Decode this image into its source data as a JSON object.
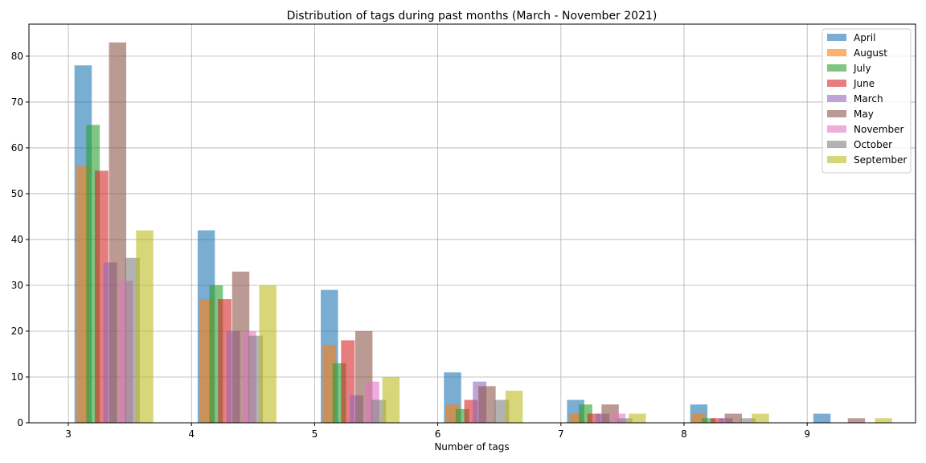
{
  "chart_data": {
    "type": "bar",
    "title": "Distribution of tags during past months (March - November 2021)",
    "xlabel": "Number of tags",
    "ylabel": "",
    "xlim": [
      2.68,
      9.88
    ],
    "ylim": [
      0,
      87
    ],
    "xticks": [
      3,
      4,
      5,
      6,
      7,
      8,
      9
    ],
    "yticks": [
      0,
      10,
      20,
      30,
      40,
      50,
      60,
      70,
      80
    ],
    "grid": true,
    "legend_position": "top-right",
    "series": [
      {
        "name": "April",
        "color": "#1f77b4",
        "x": [
          3,
          4,
          5,
          6,
          7,
          8,
          9
        ],
        "values": [
          78,
          42,
          29,
          11,
          5,
          4,
          2
        ]
      },
      {
        "name": "August",
        "color": "#ff7f0e",
        "x": [
          3,
          4,
          5,
          6,
          7,
          8
        ],
        "values": [
          56,
          27,
          17,
          4,
          2,
          2
        ]
      },
      {
        "name": "July",
        "color": "#2ca02c",
        "x": [
          3,
          4,
          5,
          6,
          7,
          8
        ],
        "values": [
          65,
          30,
          13,
          3,
          4,
          1
        ]
      },
      {
        "name": "June",
        "color": "#d62728",
        "x": [
          3,
          4,
          5,
          6,
          7,
          8
        ],
        "values": [
          55,
          27,
          18,
          5,
          2,
          1
        ]
      },
      {
        "name": "March",
        "color": "#9467bd",
        "x": [
          3,
          4,
          5,
          6,
          7,
          8
        ],
        "values": [
          35,
          20,
          6,
          9,
          2,
          1
        ]
      },
      {
        "name": "May",
        "color": "#8c564b",
        "x": [
          3,
          4,
          5,
          6,
          7,
          8,
          9
        ],
        "values": [
          83,
          33,
          20,
          8,
          4,
          2,
          1
        ]
      },
      {
        "name": "November",
        "color": "#e377c2",
        "x": [
          3,
          4,
          5,
          7
        ],
        "values": [
          31,
          20,
          9,
          2
        ]
      },
      {
        "name": "October",
        "color": "#7f7f7f",
        "x": [
          3,
          4,
          5,
          6,
          7,
          8
        ],
        "values": [
          36,
          19,
          5,
          5,
          1,
          1
        ]
      },
      {
        "name": "September",
        "color": "#bcbd22",
        "x": [
          3,
          4,
          5,
          6,
          7,
          8,
          9
        ],
        "values": [
          42,
          30,
          10,
          7,
          2,
          2,
          1
        ]
      }
    ]
  }
}
